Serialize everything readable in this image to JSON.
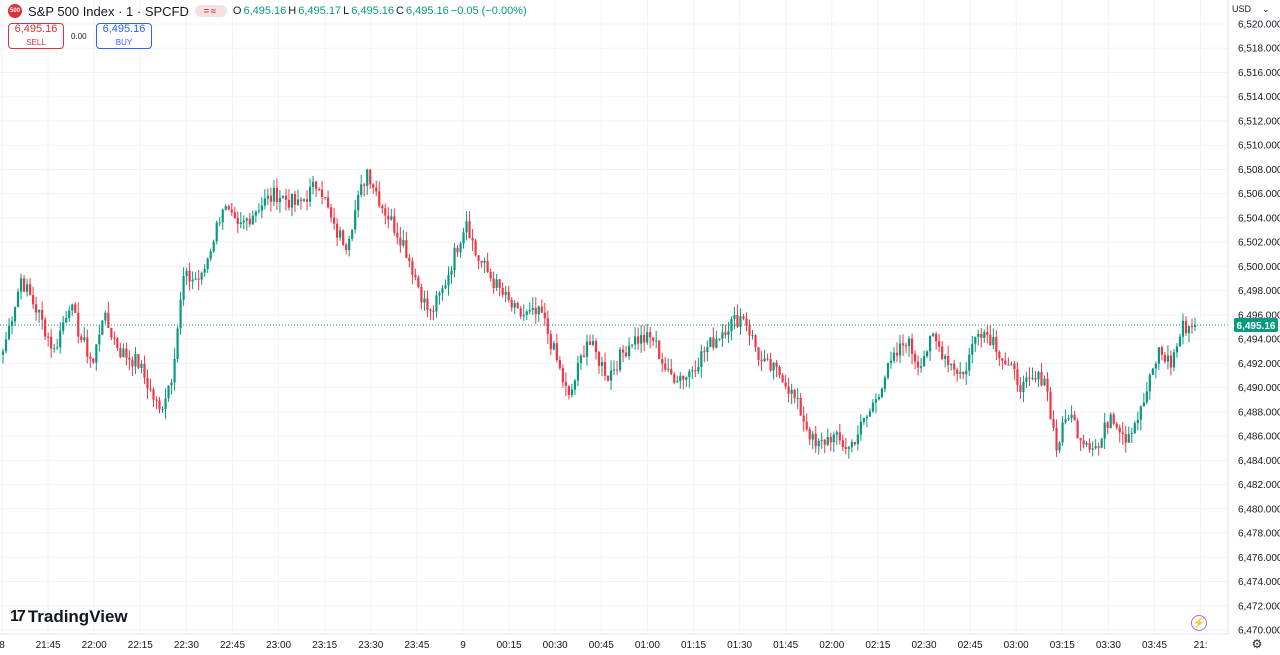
{
  "header": {
    "logo_text": "500",
    "title": "S&P 500 Index · 1 · SPCFD",
    "indicator_pill": "=≈",
    "ohlc": {
      "o_label": "O",
      "o_value": "6,495.16",
      "h_label": "H",
      "h_value": "6,495.17",
      "l_label": "L",
      "l_value": "6,495.16",
      "c_label": "C",
      "c_value": "6,495.16",
      "change": "−0.05 (−0.00%)"
    }
  },
  "trade": {
    "sell_price": "6,495.16",
    "sell_label": "SELL",
    "spread": "0.00",
    "buy_price": "6,495.16",
    "buy_label": "BUY"
  },
  "price_axis": {
    "currency": "USD",
    "last_price_label": "6,495.16"
  },
  "branding": {
    "name": "TradingView"
  },
  "colors": {
    "up": "#089981",
    "down": "#f23645",
    "grid": "#f0f3fa",
    "last_price": "#089981"
  },
  "icons": {
    "flash": "lightning-icon",
    "settings": "gear-icon"
  },
  "chart_data": {
    "type": "candlestick",
    "title": "S&P 500 Index · 1 · SPCFD",
    "interval": "1 minute",
    "ylim": [
      6470,
      6520
    ],
    "y_ticks": [
      6470,
      6472,
      6474,
      6476,
      6478,
      6480,
      6482,
      6484,
      6486,
      6488,
      6490,
      6492,
      6494,
      6496,
      6498,
      6500,
      6502,
      6504,
      6506,
      6508,
      6510,
      6512,
      6514,
      6516,
      6518,
      6520
    ],
    "x_ticks": [
      "8",
      "21:45",
      "22:00",
      "22:15",
      "22:30",
      "22:45",
      "23:00",
      "23:15",
      "23:30",
      "23:45",
      "9",
      "00:15",
      "00:30",
      "00:45",
      "01:00",
      "01:15",
      "01:30",
      "01:45",
      "02:00",
      "02:15",
      "02:30",
      "02:45",
      "03:00",
      "03:15",
      "03:30",
      "03:45",
      "21:"
    ],
    "last_price": 6495.16,
    "grid": true,
    "close_path": [
      {
        "i": 0,
        "v": 6493
      },
      {
        "i": 6,
        "v": 6499
      },
      {
        "i": 12,
        "v": 6496
      },
      {
        "i": 17,
        "v": 6493
      },
      {
        "i": 22,
        "v": 6497
      },
      {
        "i": 26,
        "v": 6494
      },
      {
        "i": 30,
        "v": 6492
      },
      {
        "i": 33,
        "v": 6496
      },
      {
        "i": 39,
        "v": 6493
      },
      {
        "i": 45,
        "v": 6492
      },
      {
        "i": 52,
        "v": 6488
      },
      {
        "i": 56,
        "v": 6491
      },
      {
        "i": 60,
        "v": 6499
      },
      {
        "i": 66,
        "v": 6499
      },
      {
        "i": 73,
        "v": 6505
      },
      {
        "i": 78,
        "v": 6503
      },
      {
        "i": 85,
        "v": 6505
      },
      {
        "i": 91,
        "v": 6506
      },
      {
        "i": 98,
        "v": 6505
      },
      {
        "i": 105,
        "v": 6507
      },
      {
        "i": 110,
        "v": 6503
      },
      {
        "i": 114,
        "v": 6502
      },
      {
        "i": 121,
        "v": 6508
      },
      {
        "i": 126,
        "v": 6505
      },
      {
        "i": 133,
        "v": 6502
      },
      {
        "i": 140,
        "v": 6497
      },
      {
        "i": 142,
        "v": 6496
      },
      {
        "i": 146,
        "v": 6498
      },
      {
        "i": 154,
        "v": 6504
      },
      {
        "i": 157,
        "v": 6501
      },
      {
        "i": 165,
        "v": 6498
      },
      {
        "i": 171,
        "v": 6496
      },
      {
        "i": 179,
        "v": 6496
      },
      {
        "i": 183,
        "v": 6493
      },
      {
        "i": 188,
        "v": 6489
      },
      {
        "i": 194,
        "v": 6494
      },
      {
        "i": 201,
        "v": 6491
      },
      {
        "i": 209,
        "v": 6494
      },
      {
        "i": 216,
        "v": 6494
      },
      {
        "i": 221,
        "v": 6491
      },
      {
        "i": 227,
        "v": 6491
      },
      {
        "i": 233,
        "v": 6493
      },
      {
        "i": 240,
        "v": 6495
      },
      {
        "i": 246,
        "v": 6496
      },
      {
        "i": 252,
        "v": 6492
      },
      {
        "i": 259,
        "v": 6491
      },
      {
        "i": 265,
        "v": 6488
      },
      {
        "i": 270,
        "v": 6485
      },
      {
        "i": 275,
        "v": 6486
      },
      {
        "i": 281,
        "v": 6485
      },
      {
        "i": 288,
        "v": 6488
      },
      {
        "i": 293,
        "v": 6491
      },
      {
        "i": 300,
        "v": 6494
      },
      {
        "i": 304,
        "v": 6492
      },
      {
        "i": 309,
        "v": 6494
      },
      {
        "i": 315,
        "v": 6492
      },
      {
        "i": 319,
        "v": 6491
      },
      {
        "i": 324,
        "v": 6495
      },
      {
        "i": 329,
        "v": 6494
      },
      {
        "i": 333,
        "v": 6492
      },
      {
        "i": 339,
        "v": 6490
      },
      {
        "i": 346,
        "v": 6491
      },
      {
        "i": 350,
        "v": 6485
      },
      {
        "i": 354,
        "v": 6488
      },
      {
        "i": 358,
        "v": 6486
      },
      {
        "i": 364,
        "v": 6485
      },
      {
        "i": 368,
        "v": 6488
      },
      {
        "i": 373,
        "v": 6486
      },
      {
        "i": 378,
        "v": 6488
      },
      {
        "i": 384,
        "v": 6493
      },
      {
        "i": 388,
        "v": 6492
      },
      {
        "i": 392,
        "v": 6495
      },
      {
        "i": 396,
        "v": 6495.16
      }
    ]
  }
}
